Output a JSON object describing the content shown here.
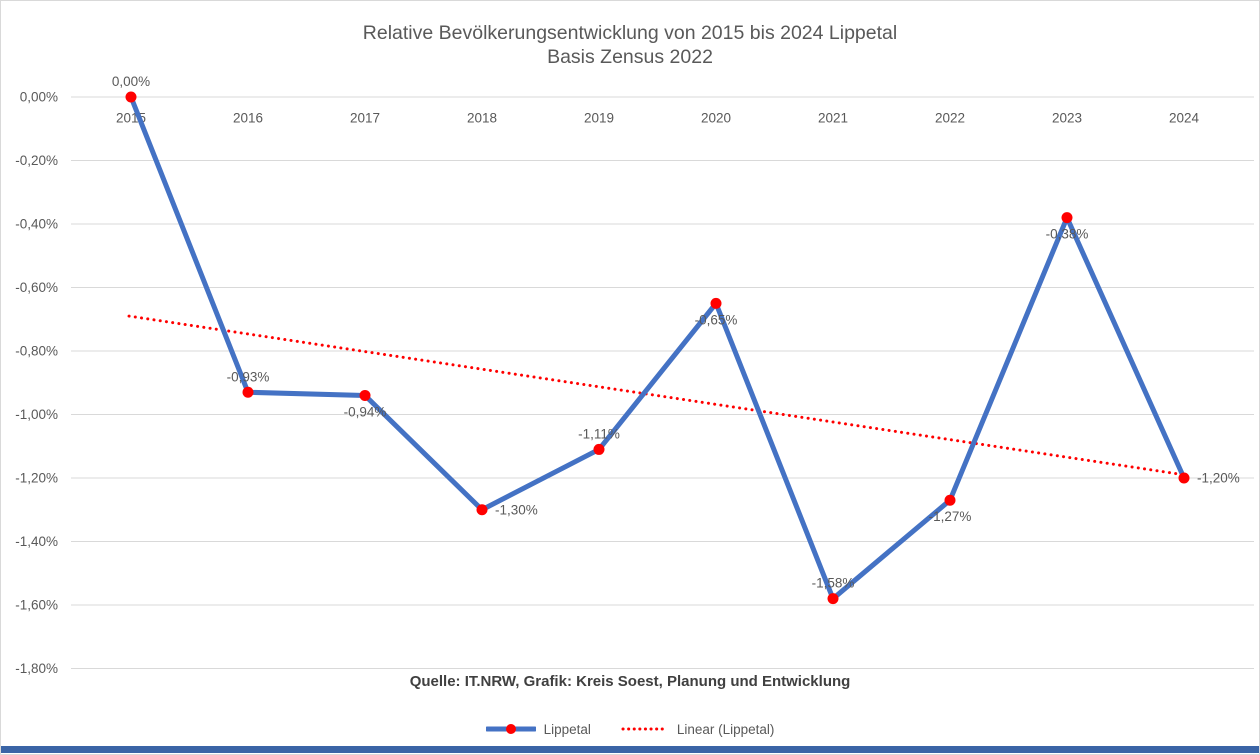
{
  "title": "Relative Bevölkerungsentwicklung von 2015 bis 2024 Lippetal",
  "subtitle": "Basis Zensus 2022",
  "source_note": "Quelle: IT.NRW, Grafik: Kreis Soest, Planung und Entwicklung",
  "legend": [
    {
      "label": "Lippetal",
      "swatch": "blue-line-red-dot"
    },
    {
      "label": "Linear (Lippetal)",
      "swatch": "red-dotted-line"
    }
  ],
  "colors": {
    "series": "#4472C4",
    "marker": "#FF0000",
    "trend": "#FF0000",
    "grid": "#D9D9D9",
    "text": "#595959",
    "source_text": "#404040",
    "bottom_bar": "#3A64A6"
  },
  "chart_data": {
    "type": "line",
    "title": "Relative Bevölkerungsentwicklung von 2015 bis 2024 Lippetal",
    "subtitle": "Basis Zensus 2022",
    "categories": [
      "2015",
      "2016",
      "2017",
      "2018",
      "2019",
      "2020",
      "2021",
      "2022",
      "2023",
      "2024"
    ],
    "series": [
      {
        "name": "Lippetal",
        "values": [
          0.0,
          -0.93,
          -0.94,
          -1.3,
          -1.11,
          -0.65,
          -1.58,
          -1.27,
          -0.38,
          -1.2
        ]
      }
    ],
    "data_labels": [
      "0,00%",
      "-0,93%",
      "-0,94%",
      "-1,30%",
      "-1,11%",
      "-0,65%",
      "-1,58%",
      "-1,27%",
      "-0,38%",
      "-1,20%"
    ],
    "label_positions": [
      "above",
      "above",
      "below",
      "right",
      "above",
      "below",
      "above",
      "below",
      "below",
      "right"
    ],
    "trendline": {
      "name": "Linear (Lippetal)",
      "start": -0.69,
      "end": -1.19,
      "style": "dotted"
    },
    "xlabel": "",
    "ylabel": "",
    "ylim": [
      -1.8,
      0
    ],
    "ytick_step": 0.2,
    "ytick_labels": [
      "0,00%",
      "-0,20%",
      "-0,40%",
      "-0,60%",
      "-0,80%",
      "-1,00%",
      "-1,20%",
      "-1,40%",
      "-1,60%",
      "-1,80%"
    ],
    "grid": true,
    "legend_position": "bottom"
  }
}
